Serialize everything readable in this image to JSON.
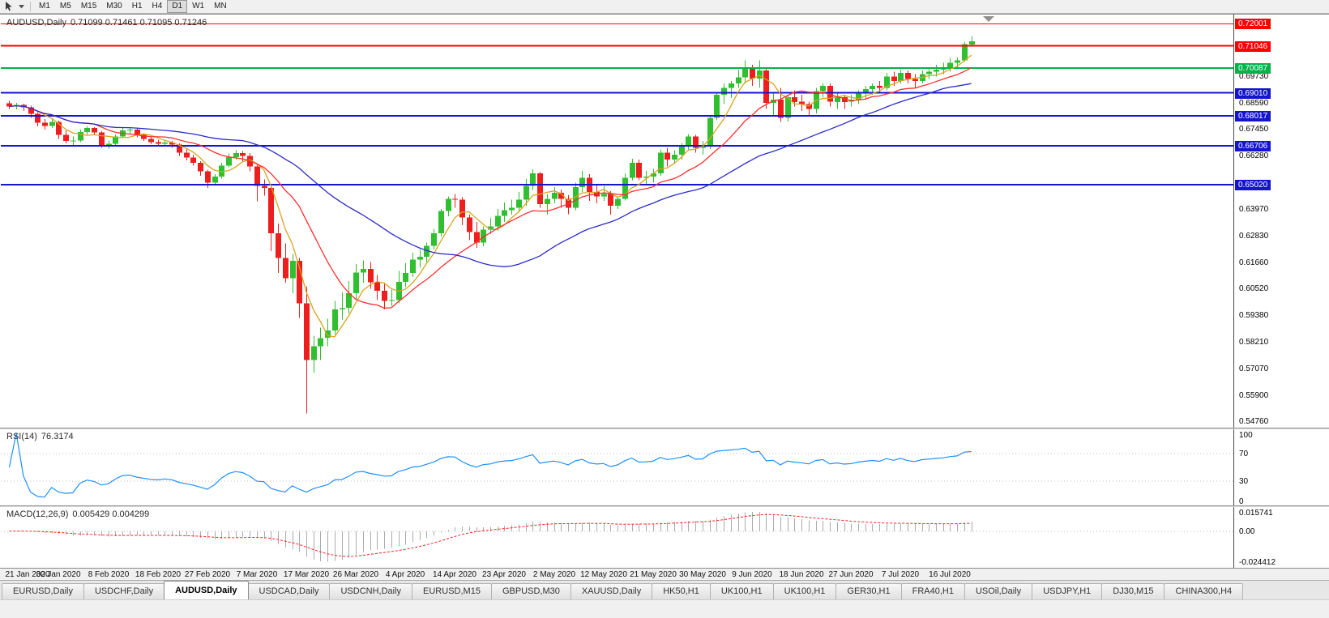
{
  "toolbar": {
    "timeframes": [
      "M1",
      "M5",
      "M15",
      "M30",
      "H1",
      "H4",
      "D1",
      "W1",
      "MN"
    ],
    "active_timeframe": "D1"
  },
  "main_chart": {
    "symbol_label": "AUDUSD,Daily",
    "ohlc_values": "0.71099 0.71461 0.71095 0.71246",
    "scale_ticks": [
      "0.69730",
      "0.68590",
      "0.67450",
      "0.66280",
      "0.63970",
      "0.62830",
      "0.61660",
      "0.60520",
      "0.59380",
      "0.58210",
      "0.57070",
      "0.55900",
      "0.54760"
    ],
    "levels": [
      {
        "label": "0.72001",
        "price": 0.72001,
        "color": "#FF0000",
        "width": 1
      },
      {
        "label": "0.71046",
        "price": 0.71046,
        "color": "#FF0000",
        "width": 2
      },
      {
        "label": "0.70087",
        "price": 0.70087,
        "color": "#00B44A",
        "width": 2
      },
      {
        "label": "0.69010",
        "price": 0.6901,
        "color": "#1515CD",
        "width": 2
      },
      {
        "label": "0.68017",
        "price": 0.68017,
        "color": "#1515CD",
        "width": 2
      },
      {
        "label": "0.66706",
        "price": 0.66706,
        "color": "#1515CD",
        "width": 2
      },
      {
        "label": "0.65020",
        "price": 0.6502,
        "color": "#1515CD",
        "width": 2
      }
    ]
  },
  "chart_data": {
    "type": "candlestick",
    "symbol": "AUDUSD",
    "timeframe": "Daily",
    "title": "AUDUSD,Daily 0.71099 0.71461 0.71095 0.71246",
    "ylim": [
      0.5449,
      0.7244
    ],
    "colors": {
      "up": "#30BF30",
      "down": "#EE1E1E"
    },
    "moving_averages": [
      {
        "name": "MA-fast",
        "period": 5,
        "color": "#D9A41B"
      },
      {
        "name": "MA-mid",
        "period": 13,
        "color": "#FF2E2E"
      },
      {
        "name": "MA-slow",
        "period": 34,
        "color": "#2B2BC8"
      }
    ],
    "x_ticks": [
      {
        "label": "21 Jan 2020",
        "bar": 0
      },
      {
        "label": "30 Jan 2020",
        "bar": 7
      },
      {
        "label": "8 Feb 2020",
        "bar": 14
      },
      {
        "label": "18 Feb 2020",
        "bar": 21
      },
      {
        "label": "27 Feb 2020",
        "bar": 28
      },
      {
        "label": "7 Mar 2020",
        "bar": 35
      },
      {
        "label": "17 Mar 2020",
        "bar": 42
      },
      {
        "label": "26 Mar 2020",
        "bar": 49
      },
      {
        "label": "4 Apr 2020",
        "bar": 56
      },
      {
        "label": "14 Apr 2020",
        "bar": 63
      },
      {
        "label": "23 Apr 2020",
        "bar": 70
      },
      {
        "label": "2 May 2020",
        "bar": 77
      },
      {
        "label": "12 May 2020",
        "bar": 84
      },
      {
        "label": "21 May 2020",
        "bar": 91
      },
      {
        "label": "30 May 2020",
        "bar": 98
      },
      {
        "label": "9 Jun 2020",
        "bar": 105
      },
      {
        "label": "18 Jun 2020",
        "bar": 112
      },
      {
        "label": "27 Jun 2020",
        "bar": 119
      },
      {
        "label": "7 Jul 2020",
        "bar": 126
      },
      {
        "label": "16 Jul 2020",
        "bar": 133
      }
    ],
    "ohlc": [
      [
        0.6855,
        0.6866,
        0.6832,
        0.6842
      ],
      [
        0.6842,
        0.6858,
        0.683,
        0.6848
      ],
      [
        0.6848,
        0.6854,
        0.6822,
        0.6838
      ],
      [
        0.6838,
        0.6845,
        0.6792,
        0.681
      ],
      [
        0.681,
        0.6818,
        0.6755,
        0.6772
      ],
      [
        0.6772,
        0.6788,
        0.6742,
        0.6758
      ],
      [
        0.6758,
        0.679,
        0.6748,
        0.6775
      ],
      [
        0.6775,
        0.678,
        0.6702,
        0.6718
      ],
      [
        0.6718,
        0.6738,
        0.6682,
        0.6692
      ],
      [
        0.6692,
        0.6712,
        0.667,
        0.6694
      ],
      [
        0.6694,
        0.6742,
        0.6688,
        0.6732
      ],
      [
        0.6732,
        0.6756,
        0.672,
        0.6748
      ],
      [
        0.6748,
        0.6752,
        0.6718,
        0.673
      ],
      [
        0.673,
        0.6735,
        0.6662,
        0.6672
      ],
      [
        0.6672,
        0.6695,
        0.666,
        0.668
      ],
      [
        0.668,
        0.672,
        0.6672,
        0.6712
      ],
      [
        0.6712,
        0.6748,
        0.6705,
        0.6738
      ],
      [
        0.6738,
        0.675,
        0.6722,
        0.6742
      ],
      [
        0.6742,
        0.6748,
        0.6708,
        0.6718
      ],
      [
        0.6718,
        0.6725,
        0.6692,
        0.6702
      ],
      [
        0.6702,
        0.6712,
        0.6678,
        0.6688
      ],
      [
        0.6688,
        0.6698,
        0.6668,
        0.668
      ],
      [
        0.668,
        0.6695,
        0.6672,
        0.6686
      ],
      [
        0.6686,
        0.6692,
        0.6662,
        0.6676
      ],
      [
        0.6676,
        0.6682,
        0.6628,
        0.6642
      ],
      [
        0.6642,
        0.6655,
        0.6608,
        0.662
      ],
      [
        0.662,
        0.6632,
        0.6585,
        0.6598
      ],
      [
        0.6598,
        0.6605,
        0.6542,
        0.656
      ],
      [
        0.656,
        0.6568,
        0.6488,
        0.6512
      ],
      [
        0.6512,
        0.6548,
        0.6502,
        0.6538
      ],
      [
        0.6538,
        0.6598,
        0.653,
        0.6585
      ],
      [
        0.6585,
        0.6638,
        0.6578,
        0.6622
      ],
      [
        0.6622,
        0.6652,
        0.6612,
        0.664
      ],
      [
        0.664,
        0.6648,
        0.6602,
        0.6628
      ],
      [
        0.6628,
        0.664,
        0.656,
        0.6582
      ],
      [
        0.6582,
        0.659,
        0.643,
        0.6498
      ],
      [
        0.6498,
        0.6525,
        0.6455,
        0.6488
      ],
      [
        0.6488,
        0.6495,
        0.6215,
        0.6292
      ],
      [
        0.6292,
        0.6335,
        0.612,
        0.6185
      ],
      [
        0.6185,
        0.6248,
        0.6078,
        0.6098
      ],
      [
        0.6098,
        0.6202,
        0.6032,
        0.6172
      ],
      [
        0.6172,
        0.6185,
        0.5925,
        0.5988
      ],
      [
        0.5988,
        0.6062,
        0.551,
        0.5742
      ],
      [
        0.5742,
        0.5848,
        0.5688,
        0.5802
      ],
      [
        0.5802,
        0.5882,
        0.5742,
        0.5838
      ],
      [
        0.5838,
        0.5922,
        0.5802,
        0.587
      ],
      [
        0.587,
        0.5998,
        0.5852,
        0.5962
      ],
      [
        0.5962,
        0.6035,
        0.5918,
        0.5968
      ],
      [
        0.5968,
        0.6085,
        0.5945,
        0.6032
      ],
      [
        0.6032,
        0.6158,
        0.6008,
        0.6122
      ],
      [
        0.6122,
        0.6175,
        0.6078,
        0.6138
      ],
      [
        0.6138,
        0.6168,
        0.6052,
        0.608
      ],
      [
        0.608,
        0.6112,
        0.6002,
        0.6042
      ],
      [
        0.6042,
        0.6075,
        0.5962,
        0.5998
      ],
      [
        0.5998,
        0.6048,
        0.5978,
        0.6002
      ],
      [
        0.6002,
        0.6128,
        0.5988,
        0.6082
      ],
      [
        0.6082,
        0.6162,
        0.6058,
        0.612
      ],
      [
        0.612,
        0.6208,
        0.6102,
        0.6178
      ],
      [
        0.6178,
        0.6222,
        0.6142,
        0.619
      ],
      [
        0.619,
        0.6252,
        0.6168,
        0.6238
      ],
      [
        0.6238,
        0.6312,
        0.6222,
        0.6292
      ],
      [
        0.6292,
        0.6398,
        0.6278,
        0.6388
      ],
      [
        0.6388,
        0.6452,
        0.6366,
        0.6442
      ],
      [
        0.6442,
        0.6462,
        0.6402,
        0.6438
      ],
      [
        0.6438,
        0.6448,
        0.6328,
        0.636
      ],
      [
        0.636,
        0.6372,
        0.6262,
        0.6298
      ],
      [
        0.6298,
        0.6342,
        0.6228,
        0.6252
      ],
      [
        0.6252,
        0.6322,
        0.6235,
        0.6308
      ],
      [
        0.6308,
        0.6358,
        0.6288,
        0.6322
      ],
      [
        0.6322,
        0.6398,
        0.6302,
        0.6368
      ],
      [
        0.6368,
        0.6425,
        0.6342,
        0.6392
      ],
      [
        0.6392,
        0.6438,
        0.6372,
        0.6402
      ],
      [
        0.6402,
        0.6472,
        0.6382,
        0.6438
      ],
      [
        0.6438,
        0.6528,
        0.6412,
        0.6498
      ],
      [
        0.6498,
        0.657,
        0.6478,
        0.6552
      ],
      [
        0.6552,
        0.6558,
        0.6402,
        0.6418
      ],
      [
        0.6418,
        0.6462,
        0.6372,
        0.6442
      ],
      [
        0.6442,
        0.6492,
        0.6422,
        0.6468
      ],
      [
        0.6468,
        0.6482,
        0.6402,
        0.6442
      ],
      [
        0.6442,
        0.6458,
        0.6375,
        0.6402
      ],
      [
        0.6402,
        0.6512,
        0.6392,
        0.6492
      ],
      [
        0.6492,
        0.6562,
        0.6472,
        0.6532
      ],
      [
        0.6532,
        0.6548,
        0.6432,
        0.6472
      ],
      [
        0.6472,
        0.6502,
        0.6422,
        0.6452
      ],
      [
        0.6452,
        0.6498,
        0.6432,
        0.6462
      ],
      [
        0.6462,
        0.6475,
        0.6372,
        0.6412
      ],
      [
        0.6412,
        0.6452,
        0.6398,
        0.6442
      ],
      [
        0.6442,
        0.6552,
        0.6435,
        0.6532
      ],
      [
        0.6532,
        0.6616,
        0.6522,
        0.6598
      ],
      [
        0.6598,
        0.6612,
        0.6522,
        0.6532
      ],
      [
        0.6532,
        0.6562,
        0.6502,
        0.6538
      ],
      [
        0.6538,
        0.6572,
        0.6512,
        0.6552
      ],
      [
        0.6552,
        0.6655,
        0.6542,
        0.6642
      ],
      [
        0.6642,
        0.6662,
        0.6582,
        0.6612
      ],
      [
        0.6612,
        0.6652,
        0.6592,
        0.6632
      ],
      [
        0.6632,
        0.6684,
        0.6612,
        0.6668
      ],
      [
        0.6668,
        0.6722,
        0.6652,
        0.6712
      ],
      [
        0.6712,
        0.6718,
        0.6642,
        0.6662
      ],
      [
        0.6662,
        0.6692,
        0.6632,
        0.6668
      ],
      [
        0.6668,
        0.6802,
        0.6658,
        0.6792
      ],
      [
        0.6792,
        0.6902,
        0.6782,
        0.6892
      ],
      [
        0.6892,
        0.6942,
        0.6852,
        0.6922
      ],
      [
        0.6922,
        0.6952,
        0.6878,
        0.6942
      ],
      [
        0.6942,
        0.7002,
        0.6922,
        0.6968
      ],
      [
        0.6968,
        0.7042,
        0.6942,
        0.7012
      ],
      [
        0.7012,
        0.7022,
        0.6932,
        0.6962
      ],
      [
        0.6962,
        0.7042,
        0.6922,
        0.6998
      ],
      [
        0.6998,
        0.7008,
        0.6832,
        0.6858
      ],
      [
        0.6858,
        0.6902,
        0.6802,
        0.6872
      ],
      [
        0.6872,
        0.6922,
        0.6775,
        0.6792
      ],
      [
        0.6792,
        0.6892,
        0.6776,
        0.6882
      ],
      [
        0.6882,
        0.6912,
        0.6842,
        0.6862
      ],
      [
        0.6862,
        0.6892,
        0.6822,
        0.6852
      ],
      [
        0.6852,
        0.6862,
        0.6802,
        0.6832
      ],
      [
        0.6832,
        0.6922,
        0.6812,
        0.6908
      ],
      [
        0.6908,
        0.6942,
        0.6882,
        0.6932
      ],
      [
        0.6932,
        0.6942,
        0.6842,
        0.6862
      ],
      [
        0.6862,
        0.6902,
        0.6832,
        0.6882
      ],
      [
        0.6882,
        0.6892,
        0.6832,
        0.6862
      ],
      [
        0.6862,
        0.6892,
        0.6842,
        0.6872
      ],
      [
        0.6872,
        0.6912,
        0.6852,
        0.6902
      ],
      [
        0.6902,
        0.6932,
        0.6872,
        0.6918
      ],
      [
        0.6918,
        0.6942,
        0.6892,
        0.6932
      ],
      [
        0.6932,
        0.6952,
        0.6902,
        0.6922
      ],
      [
        0.6922,
        0.6988,
        0.6912,
        0.6972
      ],
      [
        0.6972,
        0.6992,
        0.6932,
        0.6952
      ],
      [
        0.6952,
        0.7002,
        0.6942,
        0.6988
      ],
      [
        0.6988,
        0.6998,
        0.6942,
        0.6962
      ],
      [
        0.6962,
        0.6982,
        0.6922,
        0.6952
      ],
      [
        0.6952,
        0.6998,
        0.6942,
        0.6982
      ],
      [
        0.6982,
        0.7012,
        0.6962,
        0.6992
      ],
      [
        0.6992,
        0.7022,
        0.6972,
        0.7002
      ],
      [
        0.7002,
        0.7032,
        0.6982,
        0.7012
      ],
      [
        0.7012,
        0.7052,
        0.6992,
        0.7032
      ],
      [
        0.7032,
        0.7055,
        0.7012,
        0.7042
      ],
      [
        0.7042,
        0.7122,
        0.7035,
        0.7112
      ],
      [
        0.71099,
        0.71461,
        0.71095,
        0.71246
      ]
    ]
  },
  "rsi_panel": {
    "name_label": "RSI(14)",
    "value_label": "76.3174",
    "period": 14,
    "range": [
      0,
      100
    ],
    "levels": [
      70,
      30
    ],
    "scale_ticks": [
      100,
      70,
      30,
      0
    ],
    "line_color": "#1E90FF"
  },
  "macd_panel": {
    "name_label": "MACD(12,26,9)",
    "value_label": "0.005429 0.004299",
    "fast": 12,
    "slow": 26,
    "signal": 9,
    "range": [
      -0.0265,
      0.0175
    ],
    "scale_ticks": [
      "0.015741",
      "0.00",
      "-0.024412"
    ],
    "histogram_color": "#ABABAB",
    "signal_color": "#FF1F1F"
  },
  "bottom_tabs": {
    "active": "AUDUSD,Daily",
    "active_index": 2,
    "tabs": [
      "EURUSD,Daily",
      "USDCHF,Daily",
      "AUDUSD,Daily",
      "USDCAD,Daily",
      "USDCNH,Daily",
      "EURUSD,M15",
      "GBPUSD,M30",
      "XAUUSD,Daily",
      "HK50,H1",
      "UK100,H1",
      "UK100,H1",
      "GER30,H1",
      "FRA40,H1",
      "USOil,Daily",
      "USDJPY,H1",
      "DJ30,M15",
      "CHINA300,H4"
    ]
  }
}
